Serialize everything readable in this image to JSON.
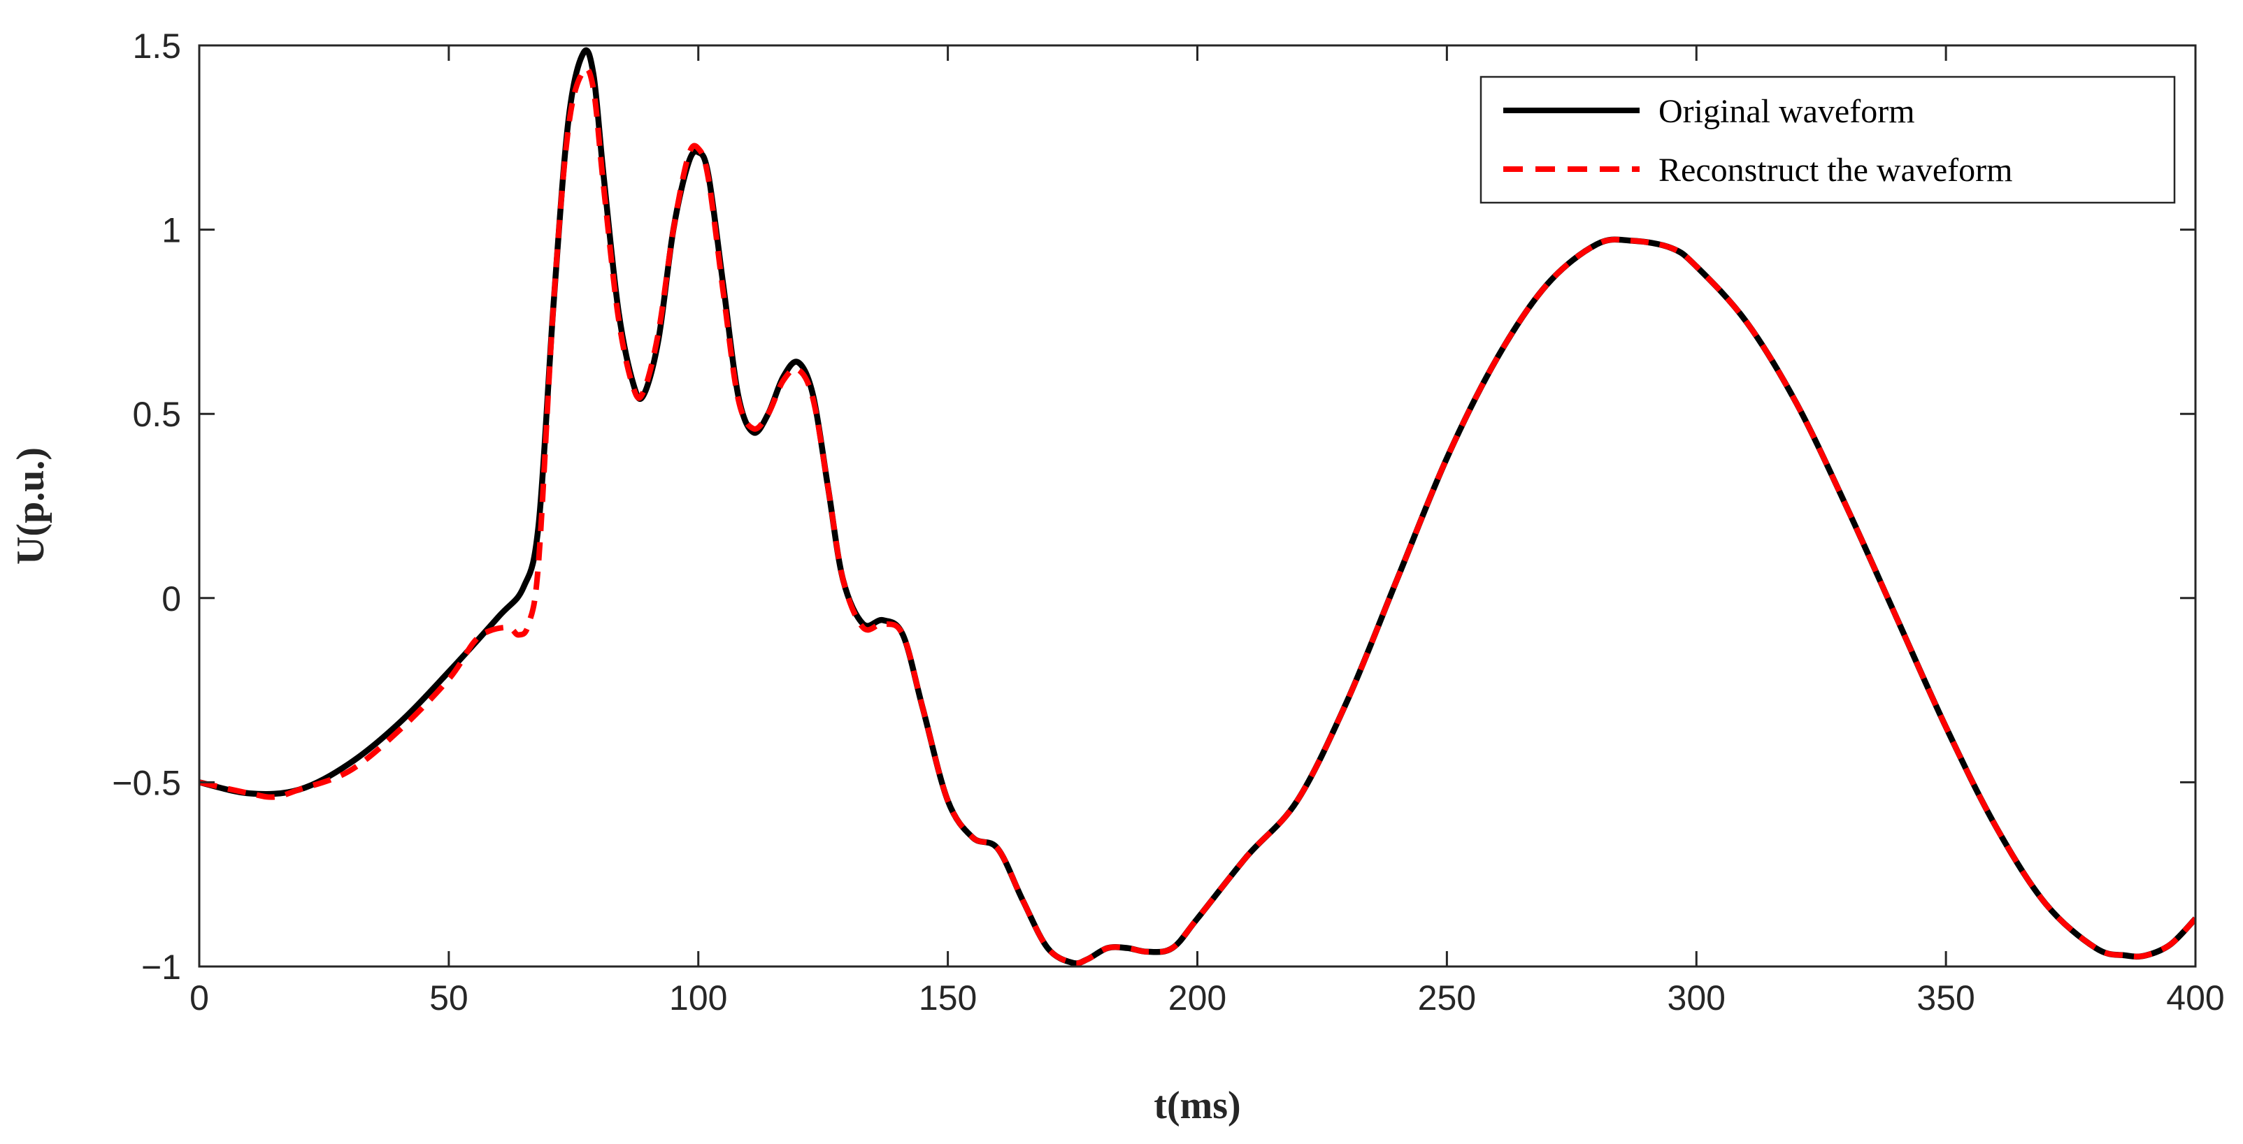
{
  "chart_data": {
    "type": "line",
    "title": "",
    "xlabel": "t(ms)",
    "ylabel": "U(p.u.)",
    "xlim": [
      0,
      400
    ],
    "ylim": [
      -1,
      1.5
    ],
    "grid": false,
    "legend_position": "top-right",
    "x_ticks": [
      0,
      50,
      100,
      150,
      200,
      250,
      300,
      350,
      400
    ],
    "y_ticks": [
      -1,
      -0.5,
      0,
      0.5,
      1,
      1.5
    ],
    "x_tick_labels": [
      "0",
      "50",
      "100",
      "150",
      "200",
      "250",
      "300",
      "350",
      "400"
    ],
    "y_tick_labels": [
      "−1",
      "−0.5",
      "0",
      "0.5",
      "1",
      "1.5"
    ],
    "series": [
      {
        "name": "Original waveform",
        "color": "#000000",
        "style": "solid",
        "x": [
          0,
          10,
          20,
          30,
          40,
          50,
          60,
          65,
          68,
          71,
          74,
          77,
          79,
          81,
          84,
          87,
          89,
          92,
          95,
          98,
          100,
          102,
          105,
          108,
          111,
          114,
          117,
          120,
          123,
          126,
          129,
          133,
          137,
          141,
          145,
          150,
          155,
          160,
          165,
          170,
          175,
          178,
          182,
          186,
          190,
          195,
          200,
          210,
          220,
          230,
          240,
          250,
          260,
          270,
          280,
          287,
          295,
          300,
          310,
          320,
          330,
          340,
          350,
          360,
          370,
          380,
          386,
          390,
          395,
          400
        ],
        "y": [
          -0.5,
          -0.53,
          -0.52,
          -0.45,
          -0.34,
          -0.2,
          -0.05,
          0.03,
          0.2,
          0.8,
          1.3,
          1.48,
          1.42,
          1.15,
          0.78,
          0.58,
          0.55,
          0.7,
          1.0,
          1.18,
          1.21,
          1.15,
          0.85,
          0.55,
          0.45,
          0.5,
          0.6,
          0.64,
          0.55,
          0.3,
          0.05,
          -0.07,
          -0.06,
          -0.1,
          -0.3,
          -0.55,
          -0.65,
          -0.68,
          -0.82,
          -0.95,
          -0.99,
          -0.98,
          -0.95,
          -0.95,
          -0.96,
          -0.95,
          -0.87,
          -0.7,
          -0.55,
          -0.28,
          0.05,
          0.38,
          0.65,
          0.85,
          0.96,
          0.97,
          0.95,
          0.9,
          0.75,
          0.53,
          0.25,
          -0.05,
          -0.35,
          -0.62,
          -0.83,
          -0.95,
          -0.97,
          -0.97,
          -0.94,
          -0.87
        ]
      },
      {
        "name": "Reconstruct the waveform",
        "color": "#ff0000",
        "style": "dashed",
        "x": [
          0,
          10,
          15,
          20,
          30,
          40,
          50,
          55,
          58,
          62,
          64,
          66,
          68,
          71,
          74,
          77,
          79,
          81,
          84,
          87,
          89,
          92,
          95,
          98,
          100,
          102,
          105,
          108,
          111,
          114,
          117,
          120,
          123,
          126,
          129,
          133,
          137,
          141,
          145,
          150,
          155,
          160,
          165,
          170,
          175,
          178,
          182,
          186,
          190,
          195,
          200,
          210,
          220,
          230,
          240,
          250,
          260,
          270,
          280,
          287,
          295,
          300,
          310,
          320,
          330,
          340,
          350,
          360,
          370,
          380,
          386,
          390,
          395,
          400
        ],
        "y": [
          -0.5,
          -0.53,
          -0.54,
          -0.52,
          -0.47,
          -0.36,
          -0.22,
          -0.12,
          -0.09,
          -0.08,
          -0.1,
          -0.07,
          0.1,
          0.8,
          1.28,
          1.43,
          1.38,
          1.12,
          0.76,
          0.57,
          0.56,
          0.72,
          1.0,
          1.2,
          1.22,
          1.14,
          0.83,
          0.54,
          0.46,
          0.5,
          0.59,
          0.62,
          0.54,
          0.3,
          0.05,
          -0.08,
          -0.07,
          -0.1,
          -0.3,
          -0.55,
          -0.65,
          -0.68,
          -0.82,
          -0.95,
          -0.99,
          -0.98,
          -0.95,
          -0.95,
          -0.96,
          -0.95,
          -0.87,
          -0.7,
          -0.55,
          -0.28,
          0.05,
          0.38,
          0.65,
          0.85,
          0.96,
          0.97,
          0.95,
          0.9,
          0.75,
          0.53,
          0.25,
          -0.05,
          -0.35,
          -0.62,
          -0.83,
          -0.95,
          -0.97,
          -0.97,
          -0.94,
          -0.87
        ]
      }
    ]
  }
}
